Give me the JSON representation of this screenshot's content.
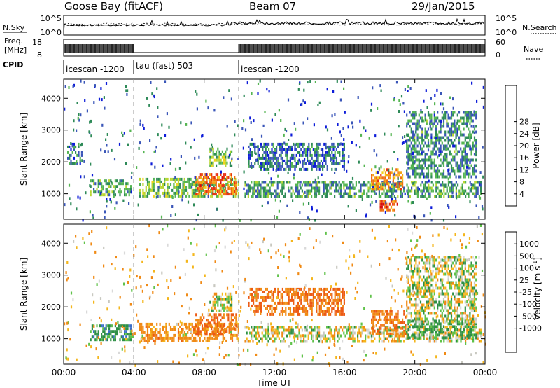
{
  "header": {
    "site": "Goose Bay (fitACF)",
    "beam": "Beam 07",
    "date": "29/Jan/2015"
  },
  "status_panels": {
    "nsky": {
      "label": "N.Sky",
      "ticks": [
        "10^5",
        "10^0"
      ]
    },
    "nsearch": {
      "label": "N.Search",
      "ticks": [
        "10^5",
        "10^0"
      ]
    },
    "freq": {
      "label_line1": "Freq.",
      "label_line2": "[MHz]",
      "ticks": [
        "18",
        "8"
      ]
    },
    "nave": {
      "label": "Nave",
      "ticks": [
        "60",
        "0"
      ]
    },
    "cpid": {
      "label": "CPID",
      "segments": [
        "icescan -1200",
        "tau (fast) 503",
        "icescan -1200"
      ]
    }
  },
  "chart_data": [
    {
      "type": "heatmap",
      "name": "power",
      "xlabel": "",
      "ylabel": "Slant Range [km]",
      "x_range_hours": [
        0,
        24
      ],
      "ylim": [
        200,
        4600
      ],
      "y_ticks": [
        "1000",
        "2000",
        "3000",
        "4000"
      ],
      "colorbar": {
        "label": "Power [dB]",
        "ticks": [
          "4",
          "8",
          "12",
          "16",
          "20",
          "24",
          "28"
        ],
        "colors": [
          "#0d1cd9",
          "#3a56b8",
          "#2e8a58",
          "#55b552",
          "#b9d631",
          "#f2d21a",
          "#f5a514",
          "#ef6c12",
          "#e83214",
          "#d50d0d"
        ]
      },
      "regions": [
        {
          "t": [
            4.3,
            10.0
          ],
          "r": [
            900,
            1500
          ],
          "v": 12
        },
        {
          "t": [
            7.5,
            9.8
          ],
          "r": [
            950,
            1650
          ],
          "v": 24
        },
        {
          "t": [
            8.3,
            9.6
          ],
          "r": [
            1850,
            2450
          ],
          "v": 12
        },
        {
          "t": [
            1.5,
            3.8
          ],
          "r": [
            1000,
            1450
          ],
          "v": 10
        },
        {
          "t": [
            10.3,
            23.8
          ],
          "r": [
            900,
            1400
          ],
          "v": 9
        },
        {
          "t": [
            17.5,
            19.3
          ],
          "r": [
            1150,
            1800
          ],
          "v": 22
        },
        {
          "t": [
            18.0,
            19.0
          ],
          "r": [
            450,
            800
          ],
          "v": 26
        },
        {
          "t": [
            10.5,
            16.0
          ],
          "r": [
            1800,
            2600
          ],
          "v": 6
        },
        {
          "t": [
            19.5,
            23.5
          ],
          "r": [
            1500,
            3600
          ],
          "v": 8
        },
        {
          "t": [
            0.2,
            1.0
          ],
          "r": [
            1900,
            2600
          ],
          "v": 6
        }
      ]
    },
    {
      "type": "heatmap",
      "name": "velocity",
      "xlabel": "Time UT",
      "ylabel": "Slant Range [km]",
      "x_range_hours": [
        0,
        24
      ],
      "x_ticks": [
        "00:00",
        "04:00",
        "08:00",
        "12:00",
        "16:00",
        "20:00",
        "00:00"
      ],
      "ylim": [
        200,
        4600
      ],
      "y_ticks": [
        "1000",
        "2000",
        "3000",
        "4000"
      ],
      "colorbar": {
        "label": "Velocity [m s",
        "label_sup": "-1",
        "label_end": "]",
        "ticks": [
          "1000",
          "500",
          "100",
          "25",
          "-25",
          "-100",
          "-500",
          "-1000"
        ],
        "colors": [
          "#1a2fb3",
          "#3b6ec7",
          "#2e8f45",
          "#60c24a",
          "#c8c8c0",
          "#d9d9d9",
          "#f4b61c",
          "#f08a15",
          "#ec5a14",
          "#e01c10"
        ]
      },
      "regions": [
        {
          "t": [
            4.3,
            10.0
          ],
          "r": [
            900,
            1500
          ],
          "v": -180
        },
        {
          "t": [
            7.5,
            9.8
          ],
          "r": [
            1100,
            1800
          ],
          "v": -350
        },
        {
          "t": [
            8.3,
            9.6
          ],
          "r": [
            1900,
            2450
          ],
          "v": 20
        },
        {
          "t": [
            1.5,
            3.8
          ],
          "r": [
            1000,
            1450
          ],
          "v": 200
        },
        {
          "t": [
            10.3,
            23.8
          ],
          "r": [
            900,
            1400
          ],
          "v": -10
        },
        {
          "t": [
            10.5,
            16.0
          ],
          "r": [
            1800,
            2600
          ],
          "v": -300
        },
        {
          "t": [
            17.5,
            19.5
          ],
          "r": [
            1150,
            1900
          ],
          "v": -250
        },
        {
          "t": [
            19.5,
            23.5
          ],
          "r": [
            1000,
            1600
          ],
          "v": 150
        },
        {
          "t": [
            19.5,
            23.5
          ],
          "r": [
            1500,
            3600
          ],
          "v": 10
        }
      ]
    }
  ]
}
